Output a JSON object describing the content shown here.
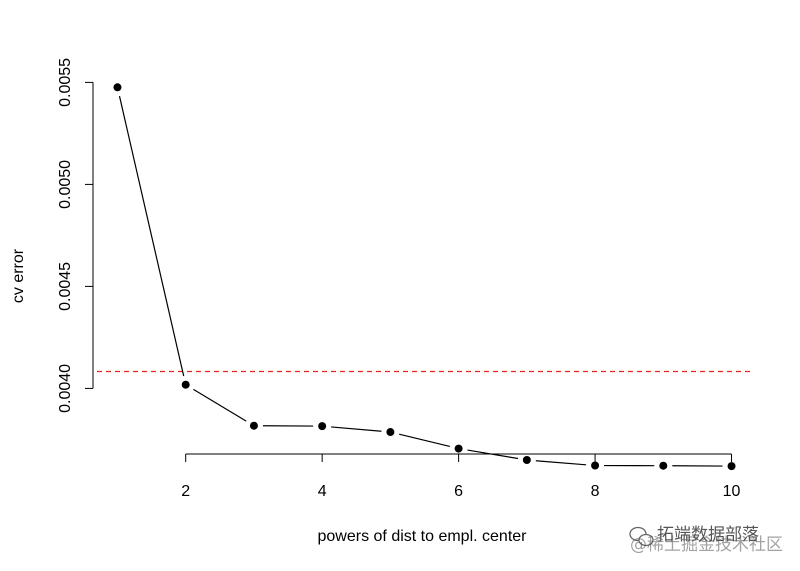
{
  "chart_data": {
    "type": "line",
    "xlabel": "powers of dist to empl. center",
    "ylabel": "cv error",
    "x": [
      1,
      2,
      3,
      4,
      5,
      6,
      7,
      8,
      9,
      10
    ],
    "series": [
      {
        "values": [
          0.005476,
          0.004018,
          0.003817,
          0.003815,
          0.003786,
          0.003705,
          0.003649,
          0.003622,
          0.003621,
          0.003619
        ]
      }
    ],
    "reference_line": {
      "y": 0.004083,
      "style": "dashed",
      "color": "#e8231b"
    },
    "x_ticks": [
      2,
      4,
      6,
      8,
      10
    ],
    "x_tick_labels": [
      "2",
      "4",
      "6",
      "8",
      "10"
    ],
    "y_ticks": [
      0.004,
      0.0045,
      0.005,
      0.0055
    ],
    "y_tick_labels": [
      "0.0040",
      "0.0045",
      "0.0050",
      "0.0055"
    ],
    "xlim": [
      0.7,
      10.3
    ],
    "ylim": [
      0.0036,
      0.0056
    ],
    "grid": false,
    "colors": {
      "points": "#000000",
      "line": "#000000",
      "reference": "#e8231b"
    }
  },
  "watermark": {
    "text": "拓端数据部落",
    "subtext": "@稀土掘金技术社区"
  }
}
